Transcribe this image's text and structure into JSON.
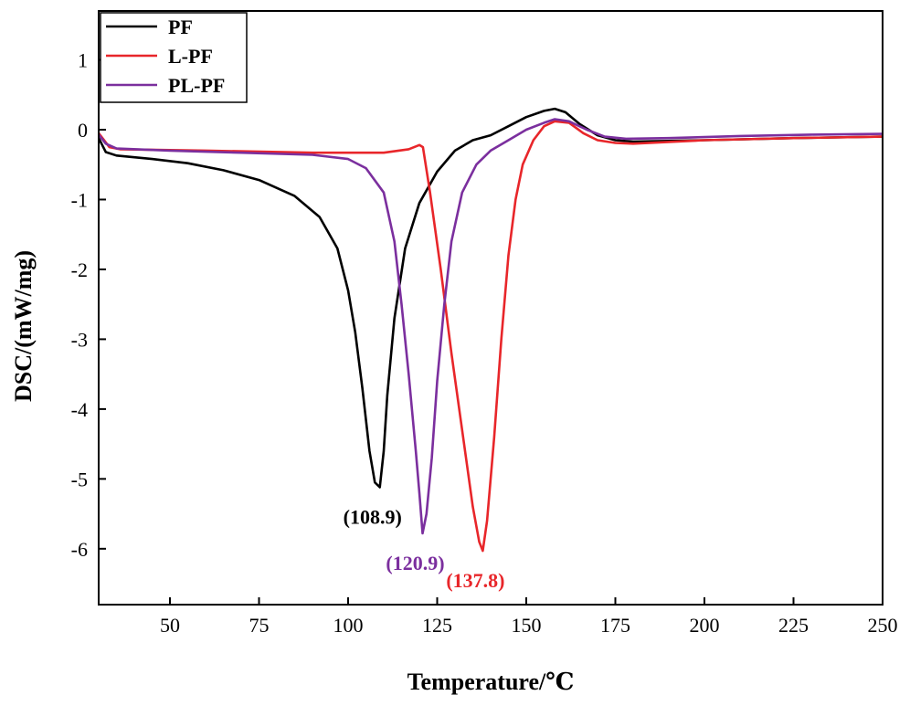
{
  "chart_data": {
    "type": "line",
    "title": "",
    "xlabel": "Temperature/℃",
    "ylabel": "DSC/(mW/mg)",
    "xlim": [
      30,
      250
    ],
    "ylim": [
      -6.8,
      1.7
    ],
    "xticks": [
      50,
      75,
      100,
      125,
      150,
      175,
      200,
      225,
      250
    ],
    "yticks": [
      1,
      0,
      -1,
      -2,
      -3,
      -4,
      -5,
      -6
    ],
    "legend_position": "top-left",
    "series": [
      {
        "name": "PF",
        "color": "#000000",
        "points": [
          [
            30,
            -0.12
          ],
          [
            32,
            -0.32
          ],
          [
            35,
            -0.37
          ],
          [
            45,
            -0.42
          ],
          [
            55,
            -0.48
          ],
          [
            65,
            -0.58
          ],
          [
            75,
            -0.72
          ],
          [
            85,
            -0.95
          ],
          [
            92,
            -1.25
          ],
          [
            97,
            -1.7
          ],
          [
            100,
            -2.3
          ],
          [
            102,
            -2.9
          ],
          [
            104,
            -3.7
          ],
          [
            106,
            -4.6
          ],
          [
            107.5,
            -5.05
          ],
          [
            108.9,
            -5.12
          ],
          [
            110,
            -4.6
          ],
          [
            111,
            -3.8
          ],
          [
            113,
            -2.7
          ],
          [
            116,
            -1.7
          ],
          [
            120,
            -1.05
          ],
          [
            125,
            -0.6
          ],
          [
            130,
            -0.3
          ],
          [
            135,
            -0.15
          ],
          [
            140,
            -0.08
          ],
          [
            145,
            0.05
          ],
          [
            150,
            0.18
          ],
          [
            155,
            0.27
          ],
          [
            158,
            0.3
          ],
          [
            161,
            0.25
          ],
          [
            165,
            0.08
          ],
          [
            170,
            -0.08
          ],
          [
            175,
            -0.15
          ],
          [
            180,
            -0.17
          ],
          [
            200,
            -0.15
          ],
          [
            225,
            -0.12
          ],
          [
            250,
            -0.1
          ]
        ]
      },
      {
        "name": "L-PF",
        "color": "#e8262a",
        "points": [
          [
            30,
            -0.05
          ],
          [
            33,
            -0.25
          ],
          [
            36,
            -0.28
          ],
          [
            60,
            -0.3
          ],
          [
            90,
            -0.33
          ],
          [
            110,
            -0.33
          ],
          [
            117,
            -0.28
          ],
          [
            120,
            -0.22
          ],
          [
            121,
            -0.25
          ],
          [
            123,
            -0.9
          ],
          [
            126,
            -2.0
          ],
          [
            129,
            -3.2
          ],
          [
            132,
            -4.3
          ],
          [
            135,
            -5.4
          ],
          [
            136.8,
            -5.9
          ],
          [
            137.8,
            -6.03
          ],
          [
            139,
            -5.6
          ],
          [
            141,
            -4.4
          ],
          [
            143,
            -3.0
          ],
          [
            145,
            -1.8
          ],
          [
            147,
            -1.0
          ],
          [
            149,
            -0.5
          ],
          [
            152,
            -0.15
          ],
          [
            155,
            0.05
          ],
          [
            158,
            0.12
          ],
          [
            162,
            0.1
          ],
          [
            166,
            -0.05
          ],
          [
            170,
            -0.15
          ],
          [
            175,
            -0.19
          ],
          [
            180,
            -0.2
          ],
          [
            200,
            -0.15
          ],
          [
            225,
            -0.12
          ],
          [
            250,
            -0.1
          ]
        ]
      },
      {
        "name": "PL-PF",
        "color": "#7b2f9e",
        "points": [
          [
            30,
            -0.07
          ],
          [
            32,
            -0.2
          ],
          [
            35,
            -0.27
          ],
          [
            50,
            -0.3
          ],
          [
            70,
            -0.33
          ],
          [
            90,
            -0.36
          ],
          [
            100,
            -0.42
          ],
          [
            105,
            -0.55
          ],
          [
            110,
            -0.9
          ],
          [
            113,
            -1.6
          ],
          [
            115,
            -2.5
          ],
          [
            117,
            -3.5
          ],
          [
            119,
            -4.6
          ],
          [
            120,
            -5.2
          ],
          [
            120.9,
            -5.78
          ],
          [
            122,
            -5.5
          ],
          [
            123.5,
            -4.7
          ],
          [
            125,
            -3.6
          ],
          [
            127,
            -2.5
          ],
          [
            129,
            -1.6
          ],
          [
            132,
            -0.9
          ],
          [
            136,
            -0.5
          ],
          [
            140,
            -0.3
          ],
          [
            145,
            -0.15
          ],
          [
            150,
            0.0
          ],
          [
            155,
            0.1
          ],
          [
            158,
            0.15
          ],
          [
            162,
            0.12
          ],
          [
            167,
            0.0
          ],
          [
            172,
            -0.1
          ],
          [
            178,
            -0.13
          ],
          [
            190,
            -0.12
          ],
          [
            210,
            -0.09
          ],
          [
            230,
            -0.07
          ],
          [
            250,
            -0.06
          ]
        ]
      }
    ],
    "annotations": [
      {
        "text": "(108.9)",
        "x": 108.9,
        "y": -5.12,
        "color": "#000000"
      },
      {
        "text": "(120.9)",
        "x": 120.9,
        "y": -5.78,
        "color": "#7b2f9e"
      },
      {
        "text": "(137.8)",
        "x": 137.8,
        "y": -6.03,
        "color": "#e8262a"
      }
    ]
  }
}
